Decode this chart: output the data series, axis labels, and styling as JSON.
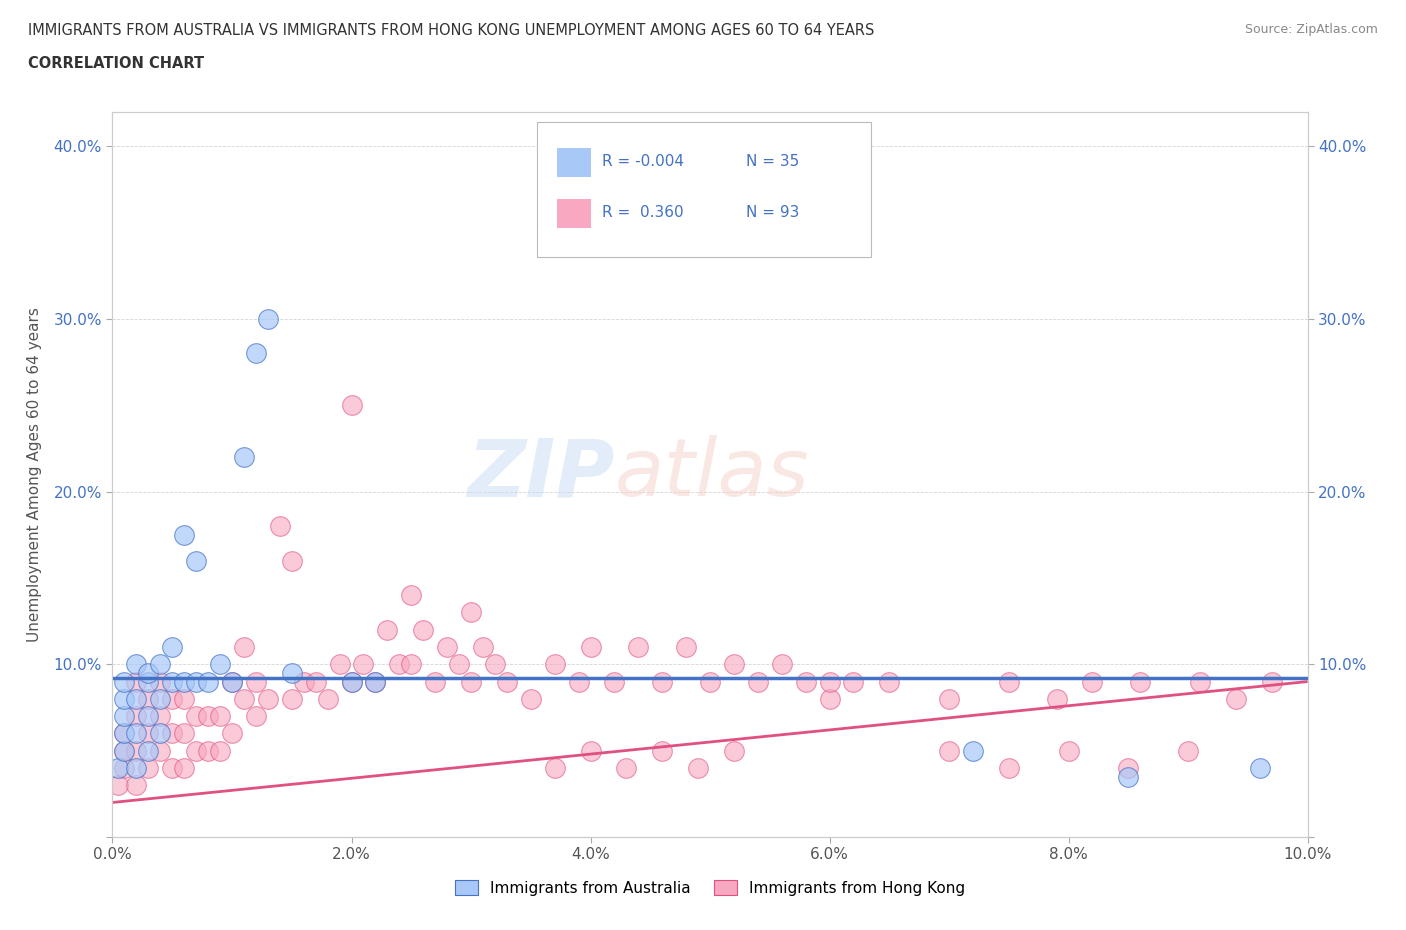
{
  "title_line1": "IMMIGRANTS FROM AUSTRALIA VS IMMIGRANTS FROM HONG KONG UNEMPLOYMENT AMONG AGES 60 TO 64 YEARS",
  "title_line2": "CORRELATION CHART",
  "source_text": "Source: ZipAtlas.com",
  "ylabel": "Unemployment Among Ages 60 to 64 years",
  "xlim": [
    0.0,
    0.1
  ],
  "ylim": [
    0.0,
    0.42
  ],
  "xticks": [
    0.0,
    0.02,
    0.04,
    0.06,
    0.08,
    0.1
  ],
  "yticks": [
    0.0,
    0.1,
    0.2,
    0.3,
    0.4
  ],
  "xtick_labels": [
    "0.0%",
    "2.0%",
    "4.0%",
    "6.0%",
    "8.0%",
    "10.0%"
  ],
  "ytick_labels": [
    "",
    "10.0%",
    "20.0%",
    "30.0%",
    "40.0%"
  ],
  "color_australia": "#a8c8f8",
  "color_hongkong": "#f8a8c0",
  "color_australia_line": "#4472c4",
  "color_hongkong_line": "#e05080",
  "legend_R_australia": "-0.004",
  "legend_N_australia": "35",
  "legend_R_hongkong": "0.360",
  "legend_N_hongkong": "93",
  "watermark": "ZIPAtlas",
  "legend_label_australia": "Immigrants from Australia",
  "legend_label_hongkong": "Immigrants from Hong Kong",
  "australia_x": [
    0.0005,
    0.001,
    0.001,
    0.001,
    0.001,
    0.001,
    0.002,
    0.002,
    0.002,
    0.002,
    0.003,
    0.003,
    0.003,
    0.003,
    0.004,
    0.004,
    0.004,
    0.005,
    0.005,
    0.006,
    0.006,
    0.007,
    0.007,
    0.008,
    0.009,
    0.01,
    0.011,
    0.012,
    0.013,
    0.015,
    0.02,
    0.022,
    0.072,
    0.085,
    0.096
  ],
  "australia_y": [
    0.04,
    0.05,
    0.06,
    0.07,
    0.08,
    0.09,
    0.04,
    0.06,
    0.08,
    0.1,
    0.05,
    0.07,
    0.09,
    0.095,
    0.06,
    0.08,
    0.1,
    0.09,
    0.11,
    0.09,
    0.175,
    0.09,
    0.16,
    0.09,
    0.1,
    0.09,
    0.22,
    0.28,
    0.3,
    0.095,
    0.09,
    0.09,
    0.05,
    0.035,
    0.04
  ],
  "hongkong_x": [
    0.0005,
    0.001,
    0.001,
    0.001,
    0.002,
    0.002,
    0.002,
    0.002,
    0.003,
    0.003,
    0.003,
    0.004,
    0.004,
    0.004,
    0.005,
    0.005,
    0.005,
    0.006,
    0.006,
    0.006,
    0.007,
    0.007,
    0.008,
    0.008,
    0.009,
    0.009,
    0.01,
    0.01,
    0.011,
    0.011,
    0.012,
    0.012,
    0.013,
    0.014,
    0.015,
    0.015,
    0.016,
    0.017,
    0.018,
    0.019,
    0.02,
    0.021,
    0.022,
    0.023,
    0.024,
    0.025,
    0.026,
    0.027,
    0.028,
    0.029,
    0.03,
    0.031,
    0.032,
    0.033,
    0.035,
    0.037,
    0.039,
    0.04,
    0.042,
    0.044,
    0.046,
    0.048,
    0.05,
    0.052,
    0.054,
    0.056,
    0.058,
    0.06,
    0.062,
    0.037,
    0.04,
    0.043,
    0.046,
    0.049,
    0.052,
    0.07,
    0.075,
    0.08,
    0.085,
    0.09,
    0.06,
    0.065,
    0.07,
    0.075,
    0.079,
    0.082,
    0.086,
    0.091,
    0.094,
    0.097,
    0.02,
    0.025,
    0.03
  ],
  "hongkong_y": [
    0.03,
    0.04,
    0.05,
    0.06,
    0.03,
    0.05,
    0.07,
    0.09,
    0.04,
    0.06,
    0.08,
    0.05,
    0.07,
    0.09,
    0.04,
    0.06,
    0.08,
    0.04,
    0.06,
    0.08,
    0.05,
    0.07,
    0.05,
    0.07,
    0.05,
    0.07,
    0.06,
    0.09,
    0.08,
    0.11,
    0.07,
    0.09,
    0.08,
    0.18,
    0.08,
    0.16,
    0.09,
    0.09,
    0.08,
    0.1,
    0.09,
    0.1,
    0.09,
    0.12,
    0.1,
    0.1,
    0.12,
    0.09,
    0.11,
    0.1,
    0.09,
    0.11,
    0.1,
    0.09,
    0.08,
    0.1,
    0.09,
    0.11,
    0.09,
    0.11,
    0.09,
    0.11,
    0.09,
    0.1,
    0.09,
    0.1,
    0.09,
    0.08,
    0.09,
    0.04,
    0.05,
    0.04,
    0.05,
    0.04,
    0.05,
    0.05,
    0.04,
    0.05,
    0.04,
    0.05,
    0.09,
    0.09,
    0.08,
    0.09,
    0.08,
    0.09,
    0.09,
    0.09,
    0.08,
    0.09,
    0.25,
    0.14,
    0.13
  ]
}
